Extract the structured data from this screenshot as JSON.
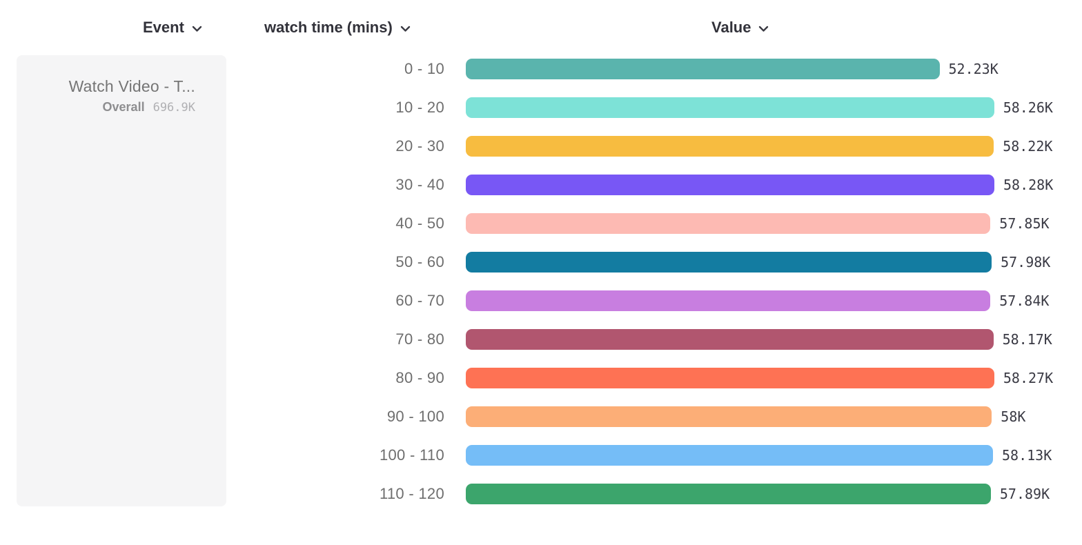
{
  "columns": {
    "event": {
      "label": "Event"
    },
    "breakdown": {
      "label": "watch time (mins)"
    },
    "value": {
      "label": "Value"
    }
  },
  "event_card": {
    "title": "Watch Video - T...",
    "overall_label": "Overall",
    "overall_value": "696.9K"
  },
  "icons": {
    "chevron_down": "chevron-down"
  },
  "chart_data": {
    "type": "bar",
    "orientation": "horizontal",
    "title": "",
    "xlabel": "Value",
    "ylabel": "watch time (mins)",
    "grid": false,
    "legend": "none",
    "xlim": [
      0,
      58280
    ],
    "categories": [
      "0 - 10",
      "10 - 20",
      "20 - 30",
      "30 - 40",
      "40 - 50",
      "50 - 60",
      "60 - 70",
      "70 - 80",
      "80 - 90",
      "90 - 100",
      "100 - 110",
      "110 - 120"
    ],
    "values": [
      52230,
      58260,
      58220,
      58280,
      57850,
      57980,
      57840,
      58170,
      58270,
      58000,
      58130,
      57890
    ],
    "value_labels": [
      "52.23K",
      "58.26K",
      "58.22K",
      "58.28K",
      "57.85K",
      "57.98K",
      "57.84K",
      "58.17K",
      "58.27K",
      "58K",
      "58.13K",
      "57.89K"
    ],
    "bar_colors": [
      "#5ab4ad",
      "#7de2d7",
      "#f7bc40",
      "#7857f5",
      "#fdbab3",
      "#137ca1",
      "#c87ee0",
      "#b1566f",
      "#fe7254",
      "#fcae77",
      "#75bdf7",
      "#3ca56c"
    ]
  }
}
